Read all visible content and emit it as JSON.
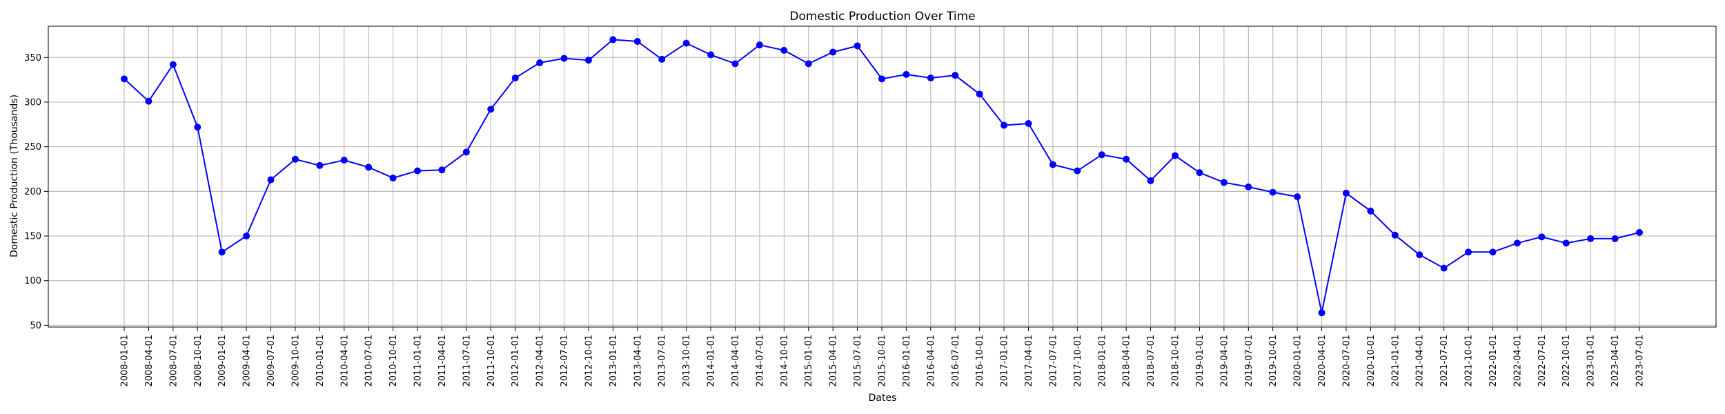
{
  "chart_data": {
    "type": "line",
    "title": "Domestic Production Over Time",
    "xlabel": "Dates",
    "ylabel": "Domestic Production (Thousands)",
    "ylim": [
      48,
      385
    ],
    "yticks": [
      50,
      100,
      150,
      200,
      250,
      300,
      350
    ],
    "grid": true,
    "marker": "circle",
    "color": "#0000ff",
    "x": [
      "2008-01-01",
      "2008-04-01",
      "2008-07-01",
      "2008-10-01",
      "2009-01-01",
      "2009-04-01",
      "2009-07-01",
      "2009-10-01",
      "2010-01-01",
      "2010-04-01",
      "2010-07-01",
      "2010-10-01",
      "2011-01-01",
      "2011-04-01",
      "2011-07-01",
      "2011-10-01",
      "2012-01-01",
      "2012-04-01",
      "2012-07-01",
      "2012-10-01",
      "2013-01-01",
      "2013-04-01",
      "2013-07-01",
      "2013-10-01",
      "2014-01-01",
      "2014-04-01",
      "2014-07-01",
      "2014-10-01",
      "2015-01-01",
      "2015-04-01",
      "2015-07-01",
      "2015-10-01",
      "2016-01-01",
      "2016-04-01",
      "2016-07-01",
      "2016-10-01",
      "2017-01-01",
      "2017-04-01",
      "2017-07-01",
      "2017-10-01",
      "2018-01-01",
      "2018-04-01",
      "2018-07-01",
      "2018-10-01",
      "2019-01-01",
      "2019-04-01",
      "2019-07-01",
      "2019-10-01",
      "2020-01-01",
      "2020-04-01",
      "2020-07-01",
      "2020-10-01",
      "2021-01-01",
      "2021-04-01",
      "2021-07-01",
      "2021-10-01",
      "2022-01-01",
      "2022-04-01",
      "2022-07-01",
      "2022-10-01",
      "2023-01-01",
      "2023-04-01",
      "2023-07-01"
    ],
    "values": [
      326,
      301,
      342,
      272,
      132,
      150,
      213,
      236,
      229,
      235,
      227,
      215,
      223,
      224,
      244,
      292,
      327,
      344,
      349,
      347,
      370,
      368,
      348,
      366,
      353,
      343,
      364,
      358,
      343,
      356,
      363,
      326,
      331,
      327,
      330,
      309,
      274,
      276,
      230,
      223,
      241,
      236,
      212,
      240,
      221,
      210,
      205,
      199,
      194,
      64,
      198,
      178,
      151,
      129,
      114,
      132,
      132,
      142,
      149,
      142,
      147,
      147,
      154
    ]
  }
}
